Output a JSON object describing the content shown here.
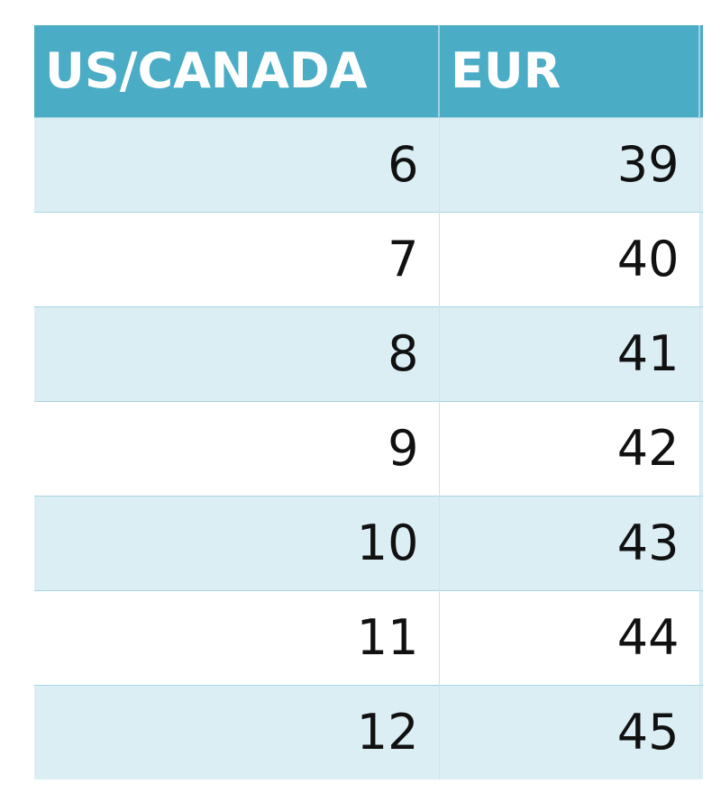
{
  "table": {
    "header": [
      "US/CANADA",
      "EUR"
    ],
    "rows": [
      [
        "6",
        "39"
      ],
      [
        "7",
        "40"
      ],
      [
        "8",
        "41"
      ],
      [
        "9",
        "42"
      ],
      [
        "10",
        "43"
      ],
      [
        "11",
        "44"
      ],
      [
        "12",
        "45"
      ]
    ]
  }
}
